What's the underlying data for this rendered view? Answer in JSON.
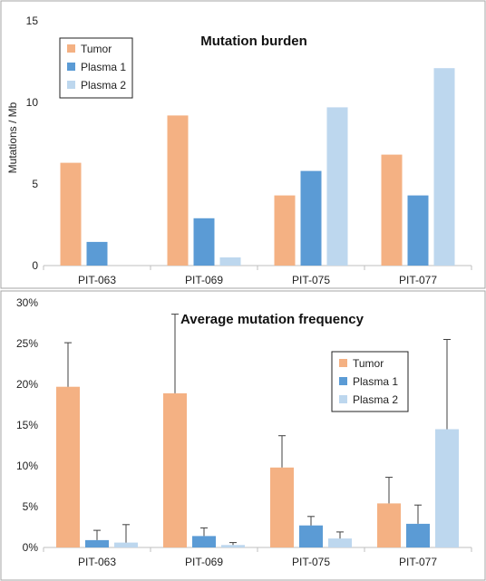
{
  "chart_data": [
    {
      "type": "bar",
      "title": "Mutation burden",
      "xlabel": "",
      "ylabel": "Mutations / Mb",
      "ylim": [
        0,
        15
      ],
      "yticks": [
        0,
        5,
        10,
        15
      ],
      "legend_position": "top-left",
      "grid": false,
      "categories": [
        "PIT-063",
        "PIT-069",
        "PIT-075",
        "PIT-077"
      ],
      "series": [
        {
          "name": "Tumor",
          "color": "#F4B183",
          "values": [
            6.3,
            9.2,
            4.3,
            6.8
          ]
        },
        {
          "name": "Plasma 1",
          "color": "#5B9BD5",
          "values": [
            1.45,
            2.9,
            5.8,
            4.3
          ]
        },
        {
          "name": "Plasma 2",
          "color": "#BDD7EE",
          "values": [
            null,
            0.5,
            9.7,
            12.1
          ]
        }
      ]
    },
    {
      "type": "bar",
      "title": "Average mutation frequency",
      "xlabel": "",
      "ylabel": "",
      "ylim": [
        0,
        30
      ],
      "yticks": [
        "0%",
        "5%",
        "10%",
        "15%",
        "20%",
        "25%",
        "30%"
      ],
      "legend_position": "top-right",
      "grid": false,
      "categories": [
        "PIT-063",
        "PIT-069",
        "PIT-075",
        "PIT-077"
      ],
      "series": [
        {
          "name": "Tumor",
          "color": "#F4B183",
          "values": [
            19.7,
            18.9,
            9.8,
            5.4
          ],
          "error_upper": [
            25.1,
            28.6,
            13.7,
            8.6
          ]
        },
        {
          "name": "Plasma 1",
          "color": "#5B9BD5",
          "values": [
            0.9,
            1.4,
            2.7,
            2.9
          ],
          "error_upper": [
            2.1,
            2.4,
            3.8,
            5.2
          ]
        },
        {
          "name": "Plasma 2",
          "color": "#BDD7EE",
          "values": [
            0.6,
            0.3,
            1.1,
            14.5
          ],
          "error_upper": [
            2.8,
            0.6,
            1.9,
            25.5
          ]
        }
      ]
    }
  ]
}
